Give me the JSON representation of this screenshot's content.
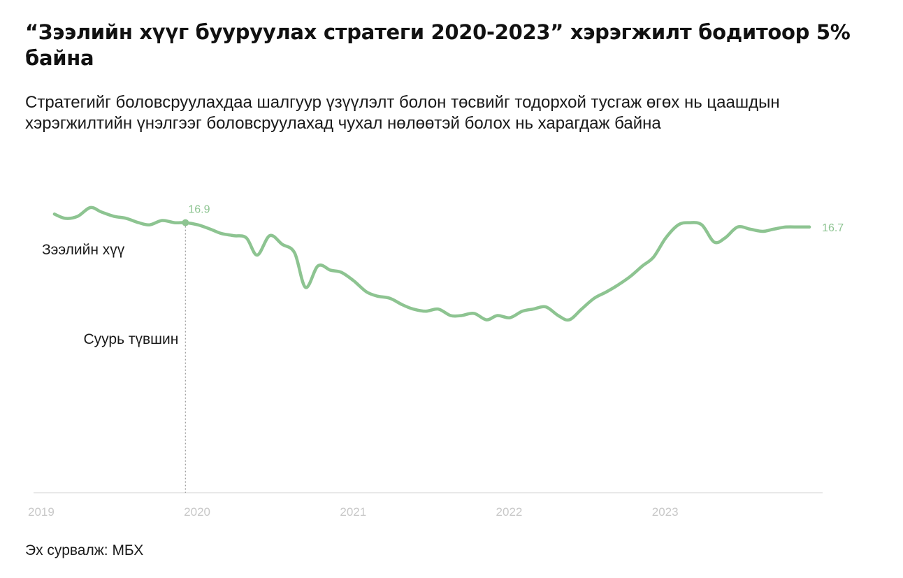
{
  "title": "“Зээлийн хүүг бууруулах стратеги 2020-2023” хэрэгжилт бодитоор 5% байна",
  "subtitle": "Стратегийг боловсруулахдаа шалгуур үзүүлэлт болон төсвийг тодорхой тусгаж өгөх нь цаашдын хэрэгжилтийн үнэлгээг боловсруулахад чухал нөлөөтэй болох нь харагдаж байна",
  "source": "Эх сурвалж: МБХ",
  "colors": {
    "line": "#8dc491",
    "baseline": "#e2e2e2",
    "marker_line": "#9a9a9a",
    "tick": "#c8c8c8"
  },
  "chart_data": {
    "type": "line",
    "title": "“Зээлийн хүүг бууруулах стратеги 2020-2023” хэрэгжилт бодитоор 5% байна",
    "xlabel": "",
    "ylabel": "",
    "x_ticks": [
      "2019",
      "2020",
      "2021",
      "2022",
      "2023"
    ],
    "x_tick_values": [
      2019,
      2020,
      2021,
      2022,
      2023
    ],
    "xlim": [
      2019.0,
      2023.96
    ],
    "ylim": [
      0,
      20.0
    ],
    "grid": false,
    "series": [
      {
        "name": "Зээлийн хүү",
        "x": [
          2019.08,
          2019.15,
          2019.23,
          2019.31,
          2019.38,
          2019.46,
          2019.54,
          2019.62,
          2019.69,
          2019.77,
          2019.85,
          2019.92,
          2020.0,
          2020.08,
          2020.15,
          2020.23,
          2020.31,
          2020.38,
          2020.46,
          2020.54,
          2020.62,
          2020.69,
          2020.77,
          2020.85,
          2020.92,
          2021.0,
          2021.08,
          2021.15,
          2021.23,
          2021.31,
          2021.38,
          2021.46,
          2021.54,
          2021.62,
          2021.69,
          2021.77,
          2021.85,
          2021.92,
          2022.0,
          2022.08,
          2022.15,
          2022.23,
          2022.31,
          2022.38,
          2022.46,
          2022.54,
          2022.62,
          2022.69,
          2022.77,
          2022.85,
          2022.92,
          2023.0,
          2023.08,
          2023.15,
          2023.23,
          2023.31,
          2023.38,
          2023.46,
          2023.54,
          2023.62,
          2023.69,
          2023.77,
          2023.85,
          2023.92
        ],
        "y": [
          17.3,
          17.1,
          17.2,
          17.6,
          17.4,
          17.2,
          17.1,
          16.9,
          16.8,
          17.0,
          16.9,
          16.9,
          16.8,
          16.6,
          16.4,
          16.3,
          16.2,
          15.4,
          16.3,
          15.9,
          15.5,
          13.9,
          14.9,
          14.7,
          14.6,
          14.2,
          13.7,
          13.5,
          13.4,
          13.1,
          12.9,
          12.8,
          12.9,
          12.6,
          12.6,
          12.7,
          12.4,
          12.6,
          12.5,
          12.8,
          12.9,
          13.0,
          12.6,
          12.4,
          12.9,
          13.4,
          13.7,
          14.0,
          14.4,
          14.9,
          15.3,
          16.2,
          16.8,
          16.9,
          16.8,
          16.0,
          16.2,
          16.7,
          16.6,
          16.5,
          16.6,
          16.7,
          16.7,
          16.7
        ]
      }
    ],
    "annotations": [
      {
        "label": "16.9",
        "x": 2019.92,
        "y": 16.9
      },
      {
        "label": "16.7",
        "x": 2023.92,
        "y": 16.7
      }
    ],
    "reference_line": {
      "x": 2019.92,
      "label": "Суурь түвшин"
    },
    "series_label": "Зээлийн хүү"
  }
}
